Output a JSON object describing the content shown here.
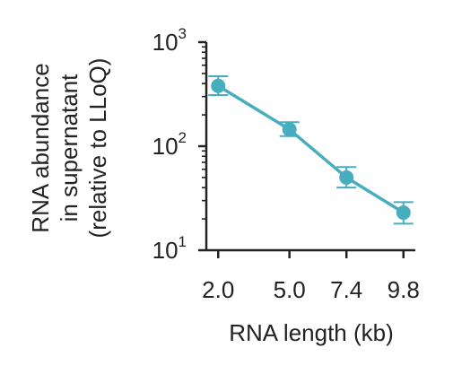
{
  "chart_data": {
    "type": "line",
    "title": "",
    "xlabel": "RNA length (kb)",
    "ylabel_lines": [
      "RNA abundance",
      "in supernatant",
      "(relative to LLoQ)"
    ],
    "x_ticks": [
      "2.0",
      "5.0",
      "7.4",
      "9.8"
    ],
    "y_tick_bases": [
      "10",
      "10",
      "10"
    ],
    "y_tick_exponents": [
      "1",
      "2",
      "3"
    ],
    "xlim": [
      1.5,
      10.3
    ],
    "ylim": [
      10,
      1000
    ],
    "y_scale": "log",
    "grid": false,
    "color": "#47adbf",
    "series": [
      {
        "x": [
          2.0,
          5.0,
          7.4,
          9.8
        ],
        "y": [
          380,
          145,
          50,
          23
        ],
        "err_low": [
          310,
          125,
          40,
          18
        ],
        "err_high": [
          470,
          170,
          63,
          29
        ]
      }
    ]
  }
}
